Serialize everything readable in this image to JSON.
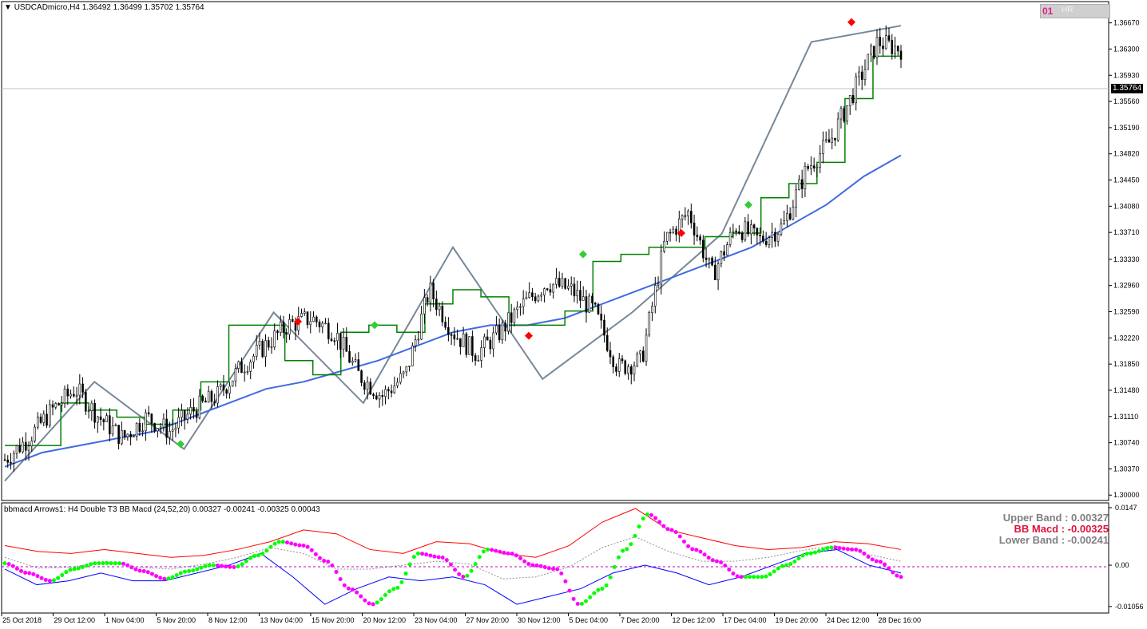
{
  "chart_header": {
    "symbol_line": "USDCADmicro,H4  1.36492 1.36499 1.35702 1.35764",
    "indicator_line": "bbmacd Arrows1: H4 Double T3 BB Macd (24,52,20) 0.00327 -0.00241 -0.00325 0.00043"
  },
  "badge": {
    "number": "01",
    "label": "HR"
  },
  "current_price_label": "1.35764",
  "bands": {
    "upper": "Upper Band : 0.00327",
    "macd": "BB Macd : -0.00325",
    "lower": "Lower Band : -0.00241",
    "upper_color": "#808080",
    "macd_color": "#dc143c",
    "lower_color": "#808080"
  },
  "colors": {
    "candles": "#000000",
    "zigzag": "#778899",
    "trailing": "#008000",
    "ma": "#4169e1",
    "buy_marker": "#32cd32",
    "sell_marker": "#ff0000",
    "macd_up": "#00ff00",
    "macd_down": "#ff00ff",
    "upper_line": "#ff0000",
    "lower_line": "#0000ff"
  },
  "chart_data": [
    {
      "type": "candlestick",
      "title": "USDCADmicro,H4",
      "y_ticks": [
        "1.36670",
        "1.36300",
        "1.35930",
        "1.35560",
        "1.35190",
        "1.34820",
        "1.34450",
        "1.34080",
        "1.33710",
        "1.33330",
        "1.32960",
        "1.32590",
        "1.32220",
        "1.31850",
        "1.31480",
        "1.31110",
        "1.30740",
        "1.30370",
        "1.30000"
      ],
      "x_ticks": [
        "25 Oct 2018",
        "29 Oct 12:00",
        "1 Nov 04:00",
        "5 Nov 20:00",
        "8 Nov 12:00",
        "13 Nov 04:00",
        "15 Nov 20:00",
        "20 Nov 12:00",
        "23 Nov 04:00",
        "27 Nov 20:00",
        "30 Nov 12:00",
        "5 Dec 04:00",
        "7 Dec 20:00",
        "12 Dec 12:00",
        "17 Dec 04:00",
        "19 Dec 20:00",
        "24 Dec 12:00",
        "28 Dec 16:00"
      ],
      "ylim": [
        1.2998,
        1.3688
      ],
      "current_price": 1.35764,
      "trend_path": [
        1.305,
        1.308,
        1.312,
        1.315,
        1.311,
        1.308,
        1.311,
        1.309,
        1.312,
        1.314,
        1.318,
        1.321,
        1.324,
        1.325,
        1.323,
        1.317,
        1.314,
        1.317,
        1.329,
        1.323,
        1.32,
        1.323,
        1.327,
        1.33,
        1.329,
        1.326,
        1.318,
        1.319,
        1.336,
        1.34,
        1.331,
        1.338,
        1.336,
        1.338,
        1.346,
        1.35,
        1.357,
        1.364,
        1.363
      ],
      "zigzag": [
        1.302,
        1.316,
        1.3065,
        1.3258,
        1.313,
        1.335,
        1.3164,
        1.3258,
        1.3369,
        1.364,
        1.3663
      ],
      "trailing": [
        1.307,
        1.307,
        1.313,
        1.312,
        1.311,
        1.31,
        1.312,
        1.316,
        1.324,
        1.324,
        1.319,
        1.317,
        1.323,
        1.324,
        1.323,
        1.327,
        1.329,
        1.328,
        1.324,
        1.324,
        1.326,
        1.333,
        1.334,
        1.335,
        1.335,
        1.3365,
        1.337,
        1.342,
        1.344,
        1.347,
        1.356,
        1.362,
        1.362
      ],
      "moving_average": [
        1.304,
        1.306,
        1.307,
        1.308,
        1.309,
        1.311,
        1.313,
        1.315,
        1.316,
        1.3175,
        1.319,
        1.321,
        1.323,
        1.324,
        1.324,
        1.325,
        1.327,
        1.329,
        1.331,
        1.333,
        1.335,
        1.338,
        1.341,
        1.345,
        1.348
      ],
      "sell_markers": [
        1.3245,
        1.3225,
        1.337,
        1.3668
      ],
      "buy_markers": [
        1.3072,
        1.324,
        1.334,
        1.341
      ]
    },
    {
      "type": "line",
      "title": "bbmacd Arrows1: H4 Double T3 BB Macd (24,52,20)",
      "y_ticks": [
        "0.0147",
        "0.00",
        "-0.01056"
      ],
      "ylim": [
        -0.0106,
        0.0147
      ],
      "upper_band": [
        0.005,
        0.0035,
        0.003,
        0.004,
        0.003,
        0.002,
        0.0025,
        0.004,
        0.006,
        0.009,
        0.008,
        0.004,
        0.003,
        0.006,
        0.0055,
        0.003,
        0.002,
        0.005,
        0.011,
        0.0145,
        0.009,
        0.007,
        0.005,
        0.004,
        0.0045,
        0.006,
        0.0055,
        0.004
      ],
      "lower_band": [
        -0.001,
        -0.005,
        -0.004,
        -0.002,
        -0.004,
        -0.004,
        -0.002,
        0.0,
        0.003,
        -0.003,
        -0.01,
        -0.006,
        -0.003,
        -0.004,
        -0.003,
        -0.005,
        -0.01,
        -0.008,
        -0.006,
        -0.002,
        0.0,
        -0.002,
        -0.005,
        -0.003,
        0.0,
        0.003,
        0.004,
        0.0,
        -0.002
      ],
      "macd": [
        0.0005,
        -0.002,
        -0.004,
        -0.001,
        0.0005,
        0.0005,
        -0.0015,
        -0.0035,
        -0.0015,
        0.0,
        -0.0005,
        0.0025,
        0.006,
        0.005,
        0.001,
        -0.006,
        -0.01,
        -0.006,
        0.003,
        0.002,
        -0.003,
        0.004,
        0.003,
        0.0,
        -0.001,
        -0.01,
        -0.006,
        0.004,
        0.013,
        0.009,
        0.004,
        0.001,
        -0.003,
        -0.003,
        0.0,
        0.003,
        0.0045,
        0.004,
        0.001,
        -0.003
      ]
    }
  ]
}
